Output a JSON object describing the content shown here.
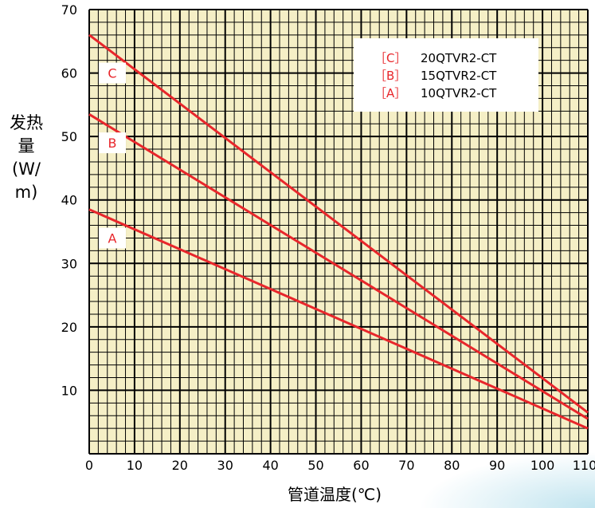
{
  "chart_data": {
    "type": "line",
    "title": "",
    "xlabel": "管道温度(℃)",
    "ylabel": "发热量(W/m)",
    "xlim": [
      0,
      110
    ],
    "ylim": [
      0,
      70
    ],
    "x_ticks": [
      "0",
      "10",
      "20",
      "30",
      "40",
      "50",
      "60",
      "70",
      "80",
      "90",
      "100",
      "110"
    ],
    "y_ticks": [
      "10",
      "20",
      "30",
      "40",
      "50",
      "60",
      "70"
    ],
    "grid": true,
    "legend_position": "top-right",
    "line_color": "#e8262b",
    "series": [
      {
        "label": "C",
        "legend_marker": "［C］",
        "name": "20QTVR2-CT",
        "x": [
          0,
          110
        ],
        "y": [
          66,
          6.5
        ]
      },
      {
        "label": "B",
        "legend_marker": "［B］",
        "name": "15QTVR2-CT",
        "x": [
          0,
          110
        ],
        "y": [
          53.5,
          5.5
        ]
      },
      {
        "label": "A",
        "legend_marker": "［A］",
        "name": "10QTVR2-CT",
        "x": [
          0,
          110
        ],
        "y": [
          38.5,
          4
        ]
      }
    ]
  }
}
